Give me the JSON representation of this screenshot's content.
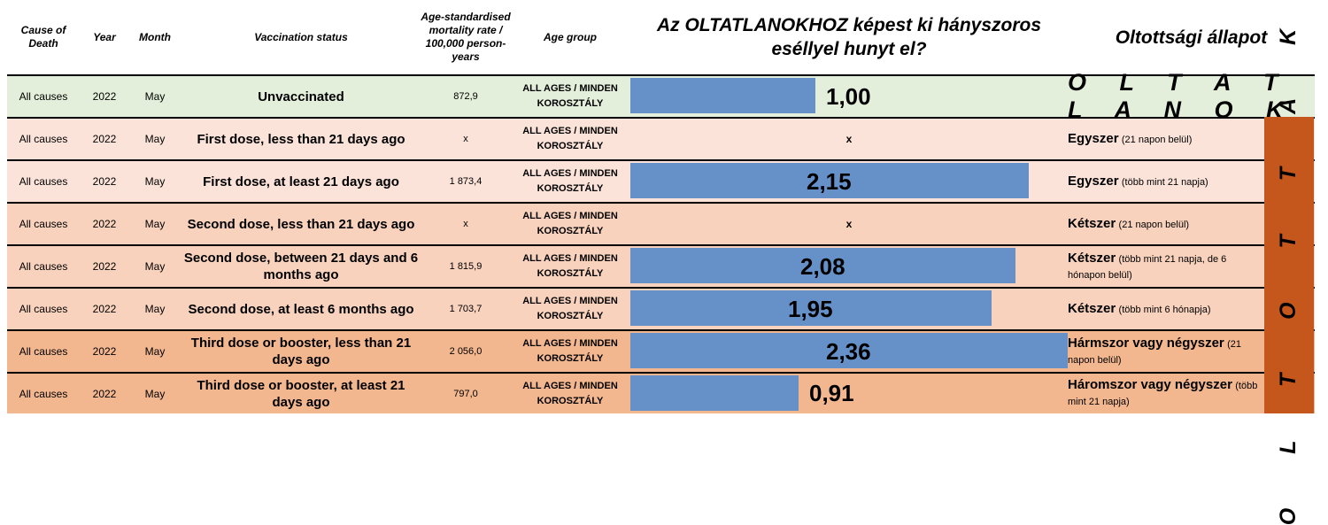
{
  "header": {
    "cause": "Cause of Death",
    "year": "Year",
    "month": "Month",
    "status": "Vaccination status",
    "rate": "Age-standardised mortality rate / 100,000 person-years",
    "age": "Age group",
    "chart_title": "Az OLTATLANOKHOZ képest ki hányszoros eséllyel hunyt el?",
    "state_title": "Oltottsági állapot"
  },
  "group_labels": {
    "unvaccinated": "O L T A T L A N O K",
    "vaccinated": "O L T O T T A K"
  },
  "colors": {
    "bar": "#6590c8",
    "unvaccinated_row": "#e3efda",
    "vaccinated_band": "#c5571d"
  },
  "chart_data": {
    "type": "bar",
    "orientation": "horizontal",
    "title": "Az OLTATLANOKHOZ képest ki hányszoros eséllyel hunyt el?",
    "xlim": [
      0,
      2.36
    ],
    "categories": [
      "Unvaccinated",
      "First dose, less than 21 days ago",
      "First dose, at least 21 days ago",
      "Second dose, less than 21 days ago",
      "Second dose, between 21 days and 6 months ago",
      "Second dose, at least 6 months ago",
      "Third dose or booster, less than 21 days ago",
      "Third dose or booster, at least 21 days ago"
    ],
    "values": [
      1.0,
      null,
      2.15,
      null,
      2.08,
      1.95,
      2.36,
      0.91
    ],
    "data_labels": [
      "1,00",
      "x",
      "2,15",
      "x",
      "2,08",
      "1,95",
      "2,36",
      "0,91"
    ]
  },
  "rows": [
    {
      "cause": "All causes",
      "year": "2022",
      "month": "May",
      "status": "Unvaccinated",
      "rate": "872,9",
      "age": "ALL AGES / MINDEN KOROSZTÁLY",
      "ratio": 1.0,
      "ratio_label": "1,00",
      "state_main": "",
      "state_sub": "",
      "bg": "#e3efda"
    },
    {
      "cause": "All causes",
      "year": "2022",
      "month": "May",
      "status": "First dose, less than 21 days ago",
      "rate": "x",
      "age": "ALL AGES / MINDEN KOROSZTÁLY",
      "ratio": null,
      "ratio_label": "x",
      "state_main": "Egyszer",
      "state_sub": "(21 napon belül)",
      "bg": "#fbe3da"
    },
    {
      "cause": "All causes",
      "year": "2022",
      "month": "May",
      "status": "First dose, at least 21 days ago",
      "rate": "1 873,4",
      "age": "ALL AGES / MINDEN KOROSZTÁLY",
      "ratio": 2.15,
      "ratio_label": "2,15",
      "state_main": "Egyszer",
      "state_sub": "(több mint 21 napja)",
      "bg": "#fbe3da"
    },
    {
      "cause": "All causes",
      "year": "2022",
      "month": "May",
      "status": "Second dose, less than 21 days ago",
      "rate": "x",
      "age": "ALL AGES / MINDEN KOROSZTÁLY",
      "ratio": null,
      "ratio_label": "x",
      "state_main": "Kétszer",
      "state_sub": "(21 napon belül)",
      "bg": "#f8d2bd"
    },
    {
      "cause": "All causes",
      "year": "2022",
      "month": "May",
      "status": "Second dose, between 21 days and 6 months ago",
      "rate": "1 815,9",
      "age": "ALL AGES / MINDEN KOROSZTÁLY",
      "ratio": 2.08,
      "ratio_label": "2,08",
      "state_main": "Kétszer",
      "state_sub": "(több mint 21 napja, de 6 hónapon belül)",
      "bg": "#f8d2bd"
    },
    {
      "cause": "All causes",
      "year": "2022",
      "month": "May",
      "status": "Second dose, at least 6 months ago",
      "rate": "1 703,7",
      "age": "ALL AGES / MINDEN KOROSZTÁLY",
      "ratio": 1.95,
      "ratio_label": "1,95",
      "state_main": "Kétszer",
      "state_sub": "(több mint 6 hónapja)",
      "bg": "#f8d2bd"
    },
    {
      "cause": "All causes",
      "year": "2022",
      "month": "May",
      "status": "Third dose or booster, less than 21 days ago",
      "rate": "2 056,0",
      "age": "ALL AGES / MINDEN KOROSZTÁLY",
      "ratio": 2.36,
      "ratio_label": "2,36",
      "state_main": "Hármszor vagy négyszer",
      "state_sub": "(21 napon belül)",
      "bg": "#f3b78f"
    },
    {
      "cause": "All causes",
      "year": "2022",
      "month": "May",
      "status": "Third dose or booster, at least 21 days ago",
      "rate": "797,0",
      "age": "ALL AGES / MINDEN KOROSZTÁLY",
      "ratio": 0.91,
      "ratio_label": "0,91",
      "state_main": "Háromszor vagy négyszer",
      "state_sub": "(több mint 21 napja)",
      "bg": "#f3b78f"
    }
  ]
}
